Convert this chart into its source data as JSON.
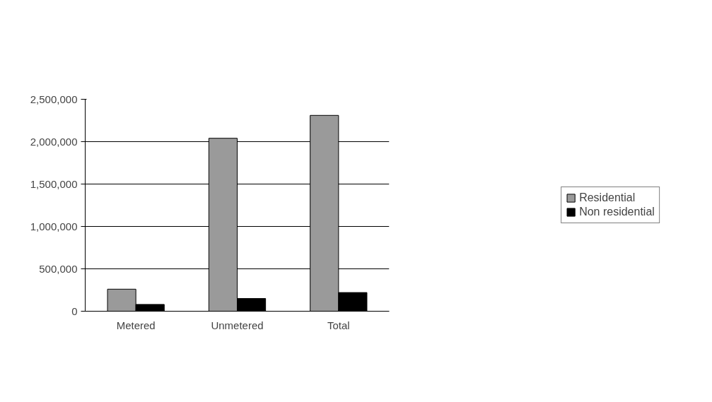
{
  "chart_data": {
    "type": "bar",
    "categories": [
      "Metered",
      "Unmetered",
      "Total"
    ],
    "series": [
      {
        "name": "Residential",
        "color": "#9a9a9a",
        "values": [
          260000,
          2040000,
          2310000
        ]
      },
      {
        "name": "Non residential",
        "color": "#000000",
        "values": [
          80000,
          150000,
          220000
        ]
      }
    ],
    "ylim": [
      0,
      2500000
    ],
    "yticks": [
      {
        "value": 0,
        "label": "0"
      },
      {
        "value": 500000,
        "label": "500,000"
      },
      {
        "value": 1000000,
        "label": "1,000,000"
      },
      {
        "value": 1500000,
        "label": "1,500,000"
      },
      {
        "value": 2000000,
        "label": "2,000,000"
      },
      {
        "value": 2500000,
        "label": "2,500,000"
      }
    ],
    "grid": "y",
    "legend": "right"
  }
}
